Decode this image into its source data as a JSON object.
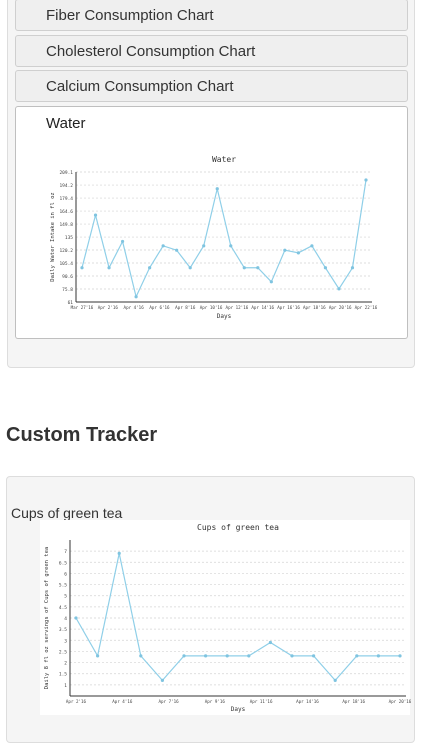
{
  "nutrition_charts": {
    "items": [
      {
        "label": "Fiber Consumption Chart"
      },
      {
        "label": "Cholesterol Consumption Chart"
      },
      {
        "label": "Calcium Consumption Chart"
      }
    ],
    "active_label": "Water"
  },
  "custom_tracker": {
    "title": "Custom Tracker",
    "tracker_label": "Cups of green tea"
  },
  "colors": {
    "line": "#8fcfe8",
    "point": "#7fc4e0",
    "grid": "#d4d4d4"
  },
  "chart_data": [
    {
      "type": "line",
      "title": "Water",
      "xlabel": "Days",
      "ylabel": "Daily Water Intake in fl oz",
      "yticks": [
        "61",
        "75.8",
        "90.6",
        "105.4",
        "120.2",
        "135",
        "149.8",
        "164.6",
        "179.4",
        "194.2",
        "209.1"
      ],
      "ylim": [
        61,
        209.1
      ],
      "xticks": [
        "Mar 27'16",
        "Apr 2'16",
        "Apr 4'16",
        "Apr 6'16",
        "Apr 8'16",
        "Apr 10'16",
        "Apr 12'16",
        "Apr 14'16",
        "Apr 16'16",
        "Apr 18'16",
        "Apr 20'16",
        "Apr 22'16"
      ],
      "series": [
        {
          "values": [
            100,
            160,
            100,
            130,
            67,
            100,
            125,
            120,
            100,
            125,
            190,
            125,
            100,
            100,
            84,
            120,
            117,
            125,
            100,
            76,
            100,
            200
          ]
        }
      ],
      "grid": true
    },
    {
      "type": "line",
      "title": "Cups of green tea",
      "xlabel": "Days",
      "ylabel": "Daily 8 fl oz servings of Cups of green tea",
      "yticks": [
        "1",
        "1.5",
        "2",
        "2.5",
        "3",
        "3.5",
        "4",
        "4.5",
        "5",
        "5.5",
        "6",
        "6.5",
        "7"
      ],
      "ylim": [
        0.5,
        7.5
      ],
      "xticks": [
        "Apr 2'16",
        "Apr 4'16",
        "Apr 7'16",
        "Apr 9'16",
        "Apr 11'16",
        "Apr 14'16",
        "Apr 18'16",
        "Apr 20'16"
      ],
      "series": [
        {
          "values": [
            4,
            2.3,
            6.9,
            2.3,
            1.2,
            2.3,
            2.3,
            2.3,
            2.3,
            2.9,
            2.3,
            2.3,
            1.2,
            2.3,
            2.3,
            2.3
          ]
        }
      ],
      "grid": true
    }
  ]
}
